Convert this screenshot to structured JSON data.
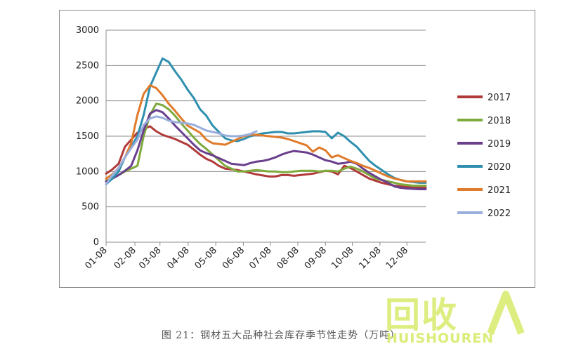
{
  "caption": "图 21：钢材五大品种社会库存季节性走势（万吨）",
  "watermark": {
    "logo_text": "回收",
    "sub_text": "HUISHOUREN",
    "color": "#d8ea6a"
  },
  "chart_data": {
    "type": "line",
    "title": "",
    "xlabel": "",
    "ylabel": "",
    "ylim": [
      0,
      3000
    ],
    "yticks": [
      0,
      500,
      1000,
      1500,
      2000,
      2500,
      3000
    ],
    "grid": "horizontal",
    "legend_position": "right",
    "xlim": [
      1,
      52
    ],
    "xticks": [
      {
        "label": "01-08",
        "x": 1
      },
      {
        "label": "02-08",
        "x": 5.6
      },
      {
        "label": "03-08",
        "x": 9.6
      },
      {
        "label": "04-08",
        "x": 14.1
      },
      {
        "label": "05-08",
        "x": 18.5
      },
      {
        "label": "06-08",
        "x": 22.9
      },
      {
        "label": "07-08",
        "x": 27.2
      },
      {
        "label": "08-08",
        "x": 31.6
      },
      {
        "label": "09-08",
        "x": 36
      },
      {
        "label": "10-08",
        "x": 40.3
      },
      {
        "label": "11-08",
        "x": 44.7
      },
      {
        "label": "12-08",
        "x": 49
      }
    ],
    "series": [
      {
        "name": "2017",
        "color": "#b03a3a",
        "x": [
          1,
          2,
          3,
          4,
          5,
          6,
          7,
          8,
          9,
          10,
          11,
          12,
          13,
          14,
          15,
          16,
          17,
          18,
          19,
          20,
          21,
          22,
          23,
          24,
          25,
          26,
          27,
          28,
          29,
          30,
          31,
          32,
          33,
          34,
          35,
          36,
          37,
          38,
          39,
          40,
          41,
          42,
          43,
          44,
          45,
          46,
          47,
          48,
          49,
          50,
          51,
          52
        ],
        "values": [
          970,
          1030,
          1110,
          1350,
          1450,
          1550,
          1600,
          1640,
          1570,
          1520,
          1490,
          1460,
          1420,
          1380,
          1310,
          1240,
          1180,
          1140,
          1080,
          1040,
          1030,
          1020,
          1000,
          980,
          960,
          945,
          930,
          930,
          950,
          950,
          940,
          950,
          960,
          970,
          990,
          1010,
          1000,
          960,
          1080,
          1050,
          1000,
          950,
          900,
          870,
          840,
          820,
          800,
          790,
          780,
          780,
          780,
          770
        ]
      },
      {
        "name": "2018",
        "color": "#7faa3c",
        "x": [
          1,
          2,
          3,
          4,
          5,
          6,
          7,
          8,
          9,
          10,
          11,
          12,
          13,
          14,
          15,
          16,
          17,
          18,
          19,
          20,
          21,
          22,
          23,
          24,
          25,
          26,
          27,
          28,
          29,
          30,
          31,
          32,
          33,
          34,
          35,
          36,
          37,
          38,
          39,
          40,
          41,
          42,
          43,
          44,
          45,
          46,
          47,
          48,
          49,
          50,
          51,
          52
        ],
        "values": [
          870,
          900,
          950,
          1000,
          1040,
          1080,
          1500,
          1800,
          1960,
          1940,
          1880,
          1790,
          1680,
          1580,
          1480,
          1390,
          1320,
          1240,
          1160,
          1080,
          1040,
          1000,
          1000,
          1010,
          1020,
          1010,
          1000,
          1000,
          990,
          990,
          1000,
          1010,
          1010,
          1010,
          1000,
          1010,
          1010,
          1000,
          1040,
          1070,
          1040,
          1000,
          950,
          900,
          880,
          860,
          840,
          820,
          810,
          800,
          800,
          800
        ]
      },
      {
        "name": "2019",
        "color": "#6a3f8e",
        "x": [
          1,
          2,
          3,
          4,
          5,
          6,
          7,
          8,
          9,
          10,
          11,
          12,
          13,
          14,
          15,
          16,
          17,
          18,
          19,
          20,
          21,
          22,
          23,
          24,
          25,
          26,
          27,
          28,
          29,
          30,
          31,
          32,
          33,
          34,
          35,
          36,
          37,
          38,
          39,
          40,
          41,
          42,
          43,
          44,
          45,
          46,
          47,
          48,
          49,
          50,
          51,
          52
        ],
        "values": [
          860,
          900,
          950,
          1010,
          1080,
          1300,
          1580,
          1820,
          1870,
          1840,
          1750,
          1650,
          1560,
          1470,
          1380,
          1300,
          1260,
          1230,
          1190,
          1150,
          1110,
          1100,
          1090,
          1120,
          1140,
          1150,
          1170,
          1200,
          1240,
          1270,
          1290,
          1280,
          1270,
          1240,
          1200,
          1160,
          1140,
          1110,
          1120,
          1140,
          1110,
          1040,
          980,
          930,
          880,
          840,
          790,
          770,
          760,
          755,
          750,
          750
        ]
      },
      {
        "name": "2020",
        "color": "#2e8fae",
        "x": [
          1,
          2,
          3,
          4,
          5,
          6,
          7,
          8,
          9,
          10,
          11,
          12,
          13,
          14,
          15,
          16,
          17,
          18,
          19,
          20,
          21,
          22,
          23,
          24,
          25,
          26,
          27,
          28,
          29,
          30,
          31,
          32,
          33,
          34,
          35,
          36,
          37,
          38,
          39,
          40,
          41,
          42,
          43,
          44,
          45,
          46,
          47,
          48,
          49,
          50,
          51,
          52
        ],
        "values": [
          820,
          900,
          1000,
          1200,
          1350,
          1500,
          1800,
          2200,
          2400,
          2600,
          2550,
          2420,
          2300,
          2160,
          2040,
          1880,
          1790,
          1650,
          1560,
          1470,
          1440,
          1430,
          1460,
          1500,
          1520,
          1540,
          1550,
          1560,
          1560,
          1540,
          1540,
          1550,
          1560,
          1570,
          1570,
          1560,
          1470,
          1550,
          1500,
          1420,
          1350,
          1250,
          1150,
          1080,
          1020,
          960,
          910,
          880,
          860,
          850,
          840,
          840
        ]
      },
      {
        "name": "2021",
        "color": "#e07b2b",
        "x": [
          1,
          2,
          3,
          4,
          5,
          6,
          7,
          8,
          9,
          10,
          11,
          12,
          13,
          14,
          15,
          16,
          17,
          18,
          19,
          20,
          21,
          22,
          23,
          24,
          25,
          26,
          27,
          28,
          29,
          30,
          31,
          32,
          33,
          34,
          35,
          36,
          37,
          38,
          39,
          40,
          41,
          42,
          43,
          44,
          45,
          46,
          47,
          48,
          49,
          50,
          51,
          52
        ],
        "values": [
          900,
          960,
          1050,
          1200,
          1400,
          1800,
          2100,
          2220,
          2180,
          2080,
          1960,
          1860,
          1750,
          1650,
          1600,
          1550,
          1450,
          1400,
          1390,
          1380,
          1420,
          1460,
          1500,
          1520,
          1520,
          1510,
          1500,
          1490,
          1480,
          1460,
          1430,
          1400,
          1370,
          1280,
          1340,
          1300,
          1200,
          1230,
          1190,
          1150,
          1120,
          1080,
          1050,
          1010,
          970,
          930,
          900,
          880,
          860,
          860,
          860,
          860
        ]
      },
      {
        "name": "2022",
        "color": "#9aaedc",
        "x": [
          1,
          2,
          3,
          4,
          5,
          6,
          7,
          8,
          9,
          10,
          11,
          12,
          13,
          14,
          15,
          16,
          17,
          18,
          19,
          20,
          21,
          22,
          23,
          24,
          25
        ],
        "values": [
          820,
          950,
          1050,
          1200,
          1330,
          1450,
          1660,
          1750,
          1780,
          1760,
          1720,
          1700,
          1690,
          1680,
          1660,
          1620,
          1580,
          1560,
          1540,
          1510,
          1500,
          1500,
          1510,
          1530,
          1570
        ]
      }
    ]
  }
}
